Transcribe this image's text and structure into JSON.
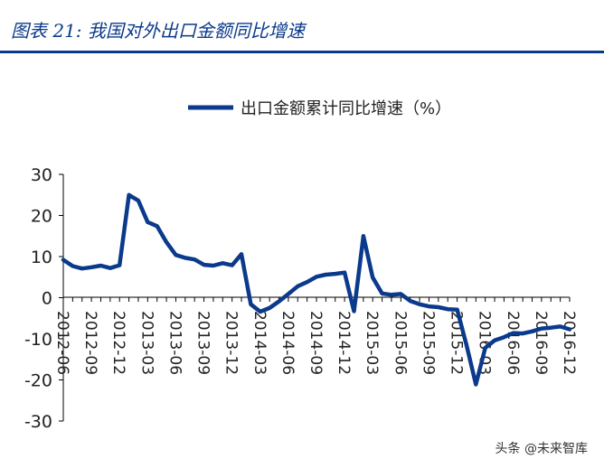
{
  "figure": {
    "title": "图表 21:  我国对外出口金额同比增速"
  },
  "watermark": "头条 @未来智库",
  "colors": {
    "series": "#0b3a8c",
    "axis": "#000000",
    "text": "#222222"
  },
  "chart_data": {
    "type": "line",
    "title": "",
    "xlabel": "",
    "ylabel": "",
    "legend_position": "top-center",
    "grid": false,
    "ylim": [
      -30,
      30
    ],
    "yticks": [
      -30,
      -20,
      -10,
      0,
      10,
      20,
      30
    ],
    "xtick_labels": [
      "2012-06",
      "2012-09",
      "2012-12",
      "2013-03",
      "2013-06",
      "2013-09",
      "2013-12",
      "2014-03",
      "2014-06",
      "2014-09",
      "2014-12",
      "2015-03",
      "2015-06",
      "2015-09",
      "2015-12",
      "2016-03",
      "2016-06",
      "2016-09",
      "2016-12"
    ],
    "x": [
      "2012-06",
      "2012-07",
      "2012-08",
      "2012-09",
      "2012-10",
      "2012-11",
      "2012-12",
      "2013-01",
      "2013-02",
      "2013-03",
      "2013-04",
      "2013-05",
      "2013-06",
      "2013-07",
      "2013-08",
      "2013-09",
      "2013-10",
      "2013-11",
      "2013-12",
      "2014-01",
      "2014-02",
      "2014-03",
      "2014-04",
      "2014-05",
      "2014-06",
      "2014-07",
      "2014-08",
      "2014-09",
      "2014-10",
      "2014-11",
      "2014-12",
      "2015-01",
      "2015-02",
      "2015-03",
      "2015-04",
      "2015-05",
      "2015-06",
      "2015-07",
      "2015-08",
      "2015-09",
      "2015-10",
      "2015-11",
      "2015-12",
      "2016-01",
      "2016-02",
      "2016-03",
      "2016-04",
      "2016-05",
      "2016-06",
      "2016-07",
      "2016-08",
      "2016-09",
      "2016-10",
      "2016-11",
      "2016-12"
    ],
    "series": [
      {
        "name": "出口金额累计同比增速（%）",
        "values": [
          9.2,
          7.7,
          7.1,
          7.4,
          7.8,
          7.2,
          7.9,
          25.0,
          23.6,
          18.4,
          17.4,
          13.5,
          10.4,
          9.7,
          9.3,
          8.0,
          7.8,
          8.4,
          7.9,
          10.6,
          -1.6,
          -3.4,
          -2.5,
          -0.9,
          0.9,
          2.8,
          3.8,
          5.1,
          5.6,
          5.8,
          6.1,
          -3.3,
          15.0,
          4.9,
          1.0,
          0.7,
          0.9,
          -0.8,
          -1.6,
          -2.1,
          -2.3,
          -2.8,
          -2.9,
          -11.5,
          -21.1,
          -12.2,
          -10.4,
          -9.6,
          -8.6,
          -8.7,
          -8.2,
          -7.5,
          -7.3,
          -7.0,
          -7.7
        ]
      }
    ]
  }
}
